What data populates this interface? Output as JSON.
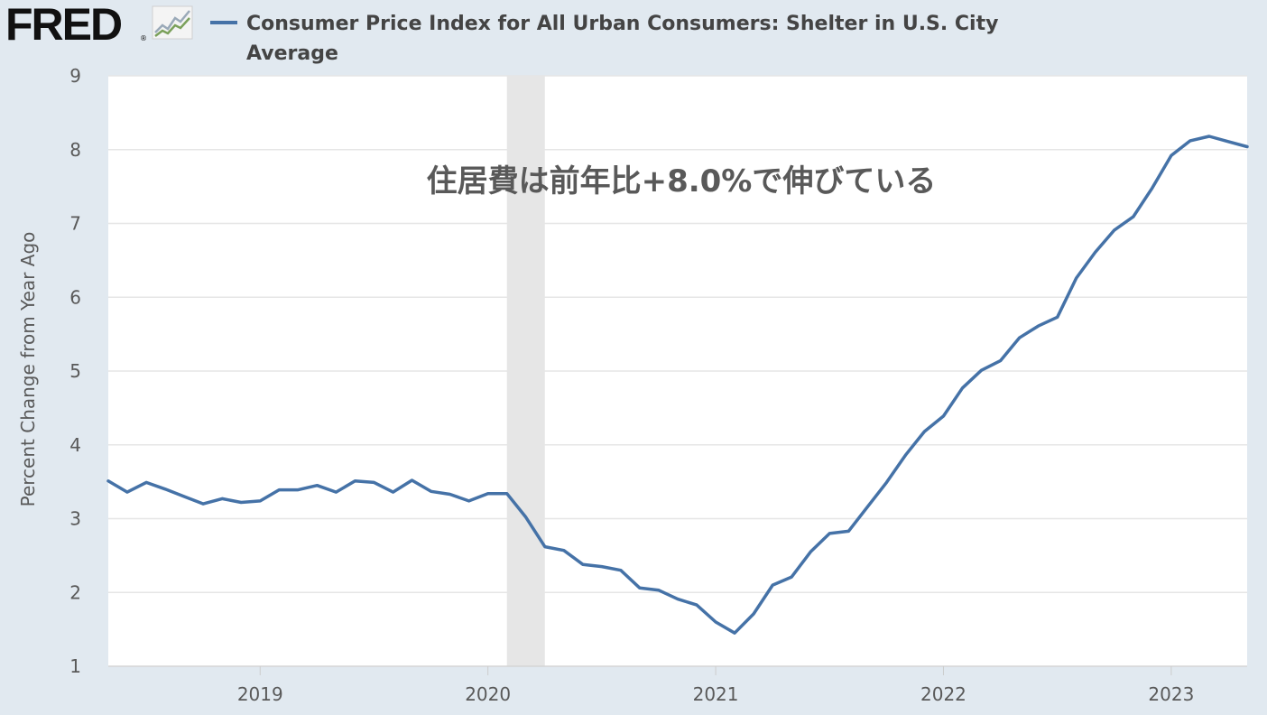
{
  "header": {
    "logo_text": "FRED",
    "logo_reg": "®",
    "logo_icon": "line-chart-icon",
    "series_title": "Consumer Price Index for All Urban Consumers: Shelter in U.S. City Average"
  },
  "colors": {
    "background": "#e1e9f0",
    "plot_background": "#ffffff",
    "series_line": "#4572a7",
    "recession_band": "#e6e6e6",
    "gridline": "#e6e6e6",
    "annotation_text": "#595959"
  },
  "chart_data": {
    "type": "line",
    "title": "Consumer Price Index for All Urban Consumers: Shelter in U.S. City Average",
    "xlabel": "",
    "ylabel": "Percent Change from Year Ago",
    "ylim": [
      1,
      9
    ],
    "yticks": [
      1,
      2,
      3,
      4,
      5,
      6,
      7,
      8,
      9
    ],
    "xlim": [
      "2018-05",
      "2023-05"
    ],
    "xticks": [
      {
        "date": "2019-01",
        "label": "2019"
      },
      {
        "date": "2020-01",
        "label": "2020"
      },
      {
        "date": "2021-01",
        "label": "2021"
      },
      {
        "date": "2022-01",
        "label": "2022"
      },
      {
        "date": "2023-01",
        "label": "2023"
      }
    ],
    "grid": "horizontal",
    "recessions": [
      {
        "start": "2020-02",
        "end": "2020-04"
      }
    ],
    "annotation": "住居費は前年比+8.0%で伸びている",
    "series": [
      {
        "name": "Consumer Price Index for All Urban Consumers: Shelter in U.S. City Average",
        "x": [
          "2018-05",
          "2018-06",
          "2018-07",
          "2018-08",
          "2018-09",
          "2018-10",
          "2018-11",
          "2018-12",
          "2019-01",
          "2019-02",
          "2019-03",
          "2019-04",
          "2019-05",
          "2019-06",
          "2019-07",
          "2019-08",
          "2019-09",
          "2019-10",
          "2019-11",
          "2019-12",
          "2020-01",
          "2020-02",
          "2020-03",
          "2020-04",
          "2020-05",
          "2020-06",
          "2020-07",
          "2020-08",
          "2020-09",
          "2020-10",
          "2020-11",
          "2020-12",
          "2021-01",
          "2021-02",
          "2021-03",
          "2021-04",
          "2021-05",
          "2021-06",
          "2021-07",
          "2021-08",
          "2021-09",
          "2021-10",
          "2021-11",
          "2021-12",
          "2022-01",
          "2022-02",
          "2022-03",
          "2022-04",
          "2022-05",
          "2022-06",
          "2022-07",
          "2022-08",
          "2022-09",
          "2022-10",
          "2022-11",
          "2022-12",
          "2023-01",
          "2023-02",
          "2023-03",
          "2023-04",
          "2023-05"
        ],
        "values": [
          3.51,
          3.36,
          3.49,
          3.4,
          3.3,
          3.2,
          3.27,
          3.22,
          3.24,
          3.39,
          3.39,
          3.45,
          3.36,
          3.51,
          3.49,
          3.36,
          3.52,
          3.37,
          3.33,
          3.24,
          3.34,
          3.34,
          3.02,
          2.62,
          2.57,
          2.38,
          2.35,
          2.3,
          2.06,
          2.03,
          1.91,
          1.83,
          1.6,
          1.45,
          1.71,
          2.1,
          2.21,
          2.55,
          2.8,
          2.83,
          3.16,
          3.49,
          3.86,
          4.18,
          4.39,
          4.77,
          5.01,
          5.14,
          5.45,
          5.61,
          5.73,
          6.26,
          6.61,
          6.91,
          7.09,
          7.48,
          7.92,
          8.12,
          8.18,
          8.11,
          8.04
        ]
      }
    ]
  }
}
